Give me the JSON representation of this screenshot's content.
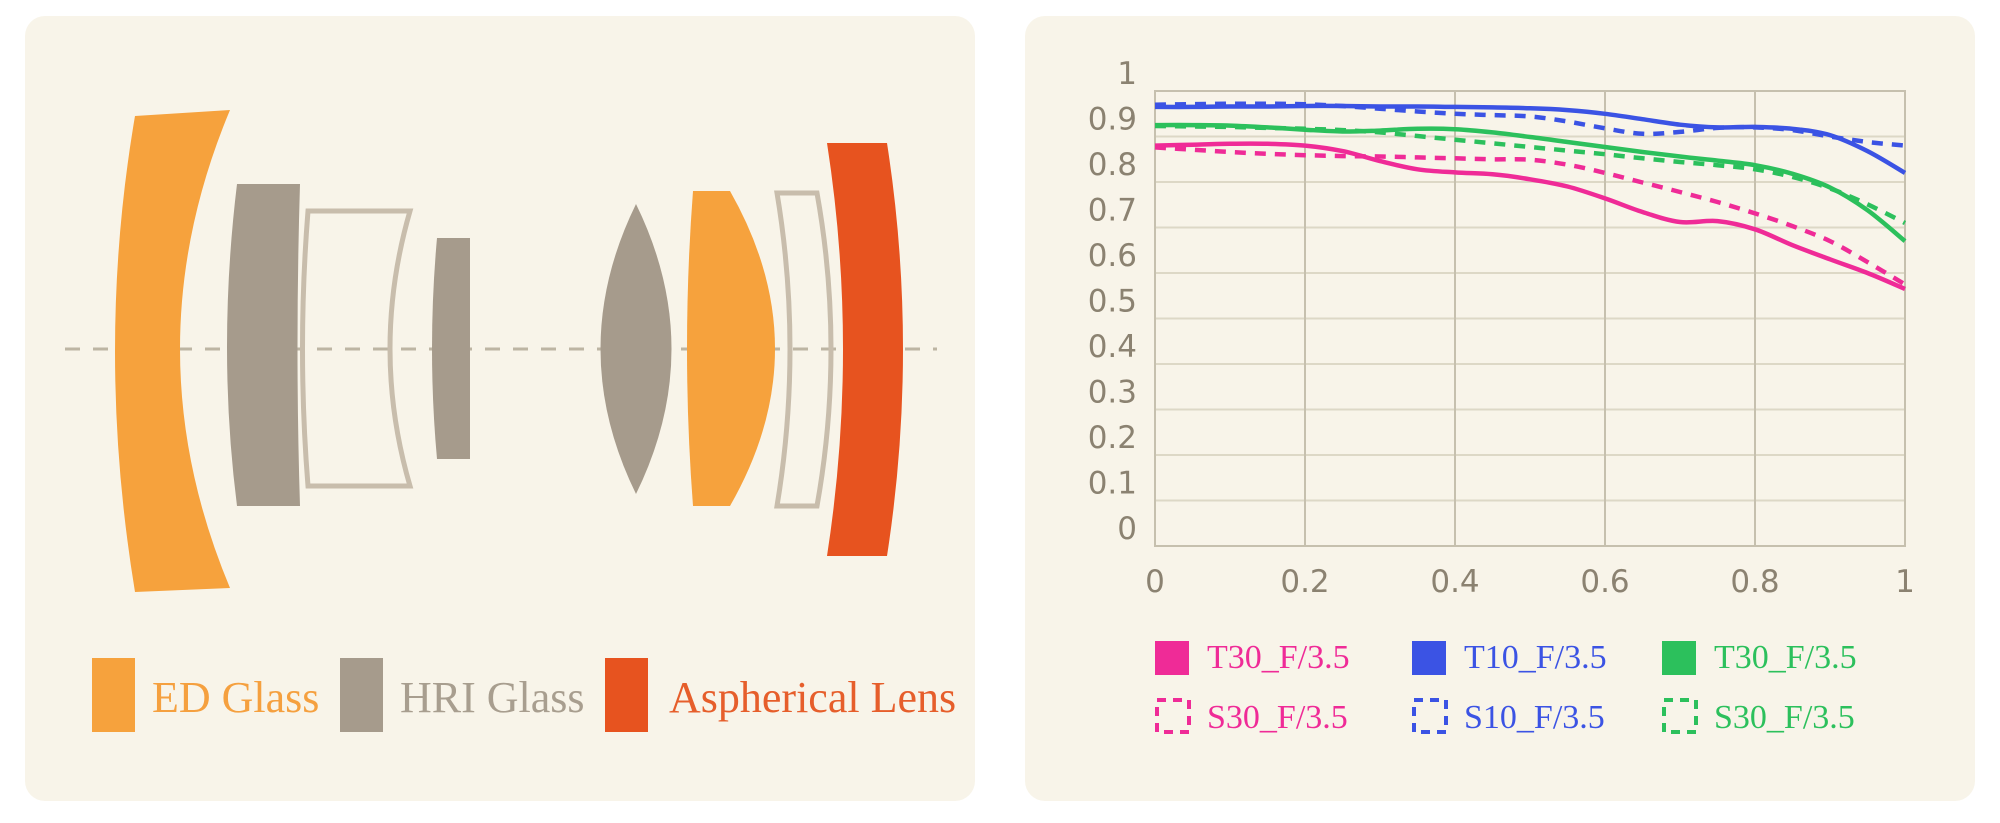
{
  "page": {
    "background": "#FFFFFF",
    "panel_background": "#F8F4E9"
  },
  "lens_diagram": {
    "colors": {
      "ed": "#F6A23D",
      "hri": "#A69B8C",
      "aspherical": "#E7531F",
      "outline": "#C8BDAC",
      "axis": "#BDB5A3"
    },
    "legend": [
      {
        "label": "ED Glass",
        "color": "#F6A23D",
        "text_color": "#F5A03F"
      },
      {
        "label": "HRI Glass",
        "color": "#A69B8C",
        "text_color": "#A89E8F"
      },
      {
        "label": "Aspherical Lens",
        "color": "#E7531F",
        "text_color": "#E65E2B"
      }
    ]
  },
  "chart_data": {
    "type": "line",
    "title": "",
    "xlabel": "",
    "ylabel": "",
    "xlim": [
      0,
      1
    ],
    "ylim": [
      0,
      1
    ],
    "grid": true,
    "legend_position": "bottom",
    "tick_color": "#8B8271",
    "grid_color_h": "#DDD8C6",
    "grid_color_v": "#C6C0AE",
    "xticks": [
      "0",
      "0.2",
      "0.4",
      "0.6",
      "0.8",
      "1"
    ],
    "yticks": [
      "0",
      "0.1",
      "0.2",
      "0.3",
      "0.4",
      "0.5",
      "0.6",
      "0.7",
      "0.8",
      "0.9",
      "1"
    ],
    "x": [
      0,
      0.05,
      0.1,
      0.15,
      0.2,
      0.25,
      0.3,
      0.35,
      0.4,
      0.45,
      0.5,
      0.55,
      0.6,
      0.65,
      0.7,
      0.75,
      0.8,
      0.85,
      0.9,
      0.95,
      1
    ],
    "series": [
      {
        "name": "T30_F/3.5",
        "style": "solid",
        "color": "#EF2B97",
        "values": [
          0.88,
          0.882,
          0.884,
          0.884,
          0.88,
          0.868,
          0.846,
          0.828,
          0.821,
          0.817,
          0.806,
          0.79,
          0.764,
          0.734,
          0.712,
          0.714,
          0.696,
          0.661,
          0.63,
          0.6,
          0.565
        ]
      },
      {
        "name": "T10_F/3.5",
        "style": "solid",
        "color": "#3B53E4",
        "values": [
          0.965,
          0.965,
          0.966,
          0.966,
          0.967,
          0.967,
          0.966,
          0.966,
          0.965,
          0.964,
          0.962,
          0.958,
          0.95,
          0.938,
          0.926,
          0.92,
          0.921,
          0.917,
          0.903,
          0.868,
          0.82
        ]
      },
      {
        "name": "T30_F/3.5",
        "style": "solid",
        "color": "#2CC05C",
        "values": [
          0.925,
          0.925,
          0.924,
          0.92,
          0.915,
          0.911,
          0.913,
          0.917,
          0.916,
          0.909,
          0.899,
          0.888,
          0.877,
          0.866,
          0.856,
          0.847,
          0.837,
          0.818,
          0.788,
          0.738,
          0.67
        ]
      },
      {
        "name": "S30_F/3.5",
        "style": "dashed",
        "color": "#EF2B97",
        "values": [
          0.876,
          0.871,
          0.866,
          0.862,
          0.859,
          0.857,
          0.856,
          0.854,
          0.852,
          0.85,
          0.849,
          0.838,
          0.82,
          0.799,
          0.778,
          0.756,
          0.731,
          0.703,
          0.67,
          0.624,
          0.575
        ]
      },
      {
        "name": "S10_F/3.5",
        "style": "dashed",
        "color": "#3B53E4",
        "values": [
          0.97,
          0.971,
          0.972,
          0.972,
          0.971,
          0.967,
          0.961,
          0.955,
          0.95,
          0.947,
          0.944,
          0.933,
          0.918,
          0.906,
          0.91,
          0.919,
          0.92,
          0.914,
          0.9,
          0.888,
          0.88
        ]
      },
      {
        "name": "S30_F/3.5",
        "style": "dashed",
        "color": "#2CC05C",
        "values": [
          0.923,
          0.922,
          0.921,
          0.919,
          0.917,
          0.914,
          0.909,
          0.901,
          0.893,
          0.885,
          0.877,
          0.869,
          0.861,
          0.852,
          0.844,
          0.837,
          0.828,
          0.811,
          0.786,
          0.751,
          0.71
        ]
      }
    ],
    "legend_rows": [
      [
        {
          "label": "T30_F/3.5",
          "color": "#EF2B97",
          "swatch": "solid"
        },
        {
          "label": "T10_F/3.5",
          "color": "#3B53E4",
          "swatch": "solid"
        },
        {
          "label": "T30_F/3.5",
          "color": "#2CC05C",
          "swatch": "solid"
        }
      ],
      [
        {
          "label": "S30_F/3.5",
          "color": "#EF2B97",
          "swatch": "dashed"
        },
        {
          "label": "S10_F/3.5",
          "color": "#3B53E4",
          "swatch": "dashed"
        },
        {
          "label": "S30_F/3.5",
          "color": "#2CC05C",
          "swatch": "dashed"
        }
      ]
    ]
  }
}
